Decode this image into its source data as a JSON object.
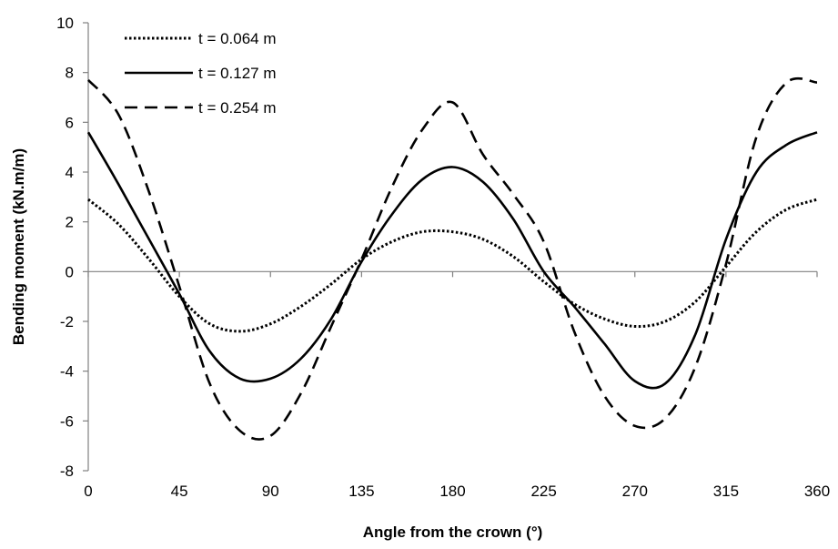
{
  "chart_data": {
    "type": "line",
    "title": "",
    "xlabel": "Angle from the crown (°)",
    "ylabel": "Bending moment (kN.m/m)",
    "xlim": [
      0,
      360
    ],
    "ylim": [
      -8,
      10
    ],
    "xticks": [
      0,
      45,
      90,
      135,
      180,
      225,
      270,
      315,
      360
    ],
    "yticks": [
      -8,
      -6,
      -4,
      -2,
      0,
      2,
      4,
      6,
      8,
      10
    ],
    "grid": false,
    "legend_position": "top-left",
    "series": [
      {
        "name": "t = 0.064 m",
        "style": "dotted",
        "color": "#000000",
        "x": [
          0,
          15,
          30,
          45,
          60,
          75,
          90,
          105,
          120,
          135,
          150,
          165,
          180,
          195,
          210,
          225,
          240,
          255,
          270,
          285,
          300,
          315,
          330,
          345,
          360
        ],
        "y": [
          2.9,
          1.9,
          0.5,
          -1.0,
          -2.1,
          -2.4,
          -2.1,
          -1.4,
          -0.5,
          0.5,
          1.2,
          1.6,
          1.6,
          1.3,
          0.6,
          -0.4,
          -1.3,
          -1.9,
          -2.2,
          -2.0,
          -1.2,
          0.2,
          1.6,
          2.5,
          2.9
        ]
      },
      {
        "name": "t = 0.127 m",
        "style": "solid",
        "color": "#000000",
        "x": [
          0,
          15,
          30,
          45,
          60,
          75,
          90,
          105,
          120,
          135,
          150,
          165,
          180,
          195,
          210,
          225,
          240,
          255,
          270,
          285,
          300,
          315,
          330,
          345,
          360
        ],
        "y": [
          5.6,
          3.5,
          1.3,
          -0.9,
          -3.2,
          -4.3,
          -4.3,
          -3.5,
          -1.9,
          0.4,
          2.3,
          3.7,
          4.2,
          3.6,
          2.1,
          0.0,
          -1.4,
          -2.9,
          -4.4,
          -4.5,
          -2.5,
          1.3,
          4.0,
          5.1,
          5.6
        ]
      },
      {
        "name": "t = 0.254 m",
        "style": "dashed",
        "color": "#000000",
        "x": [
          0,
          15,
          30,
          45,
          60,
          75,
          90,
          105,
          120,
          135,
          150,
          165,
          180,
          195,
          210,
          225,
          240,
          255,
          270,
          285,
          300,
          315,
          330,
          345,
          360
        ],
        "y": [
          7.7,
          6.3,
          3.2,
          -0.6,
          -4.5,
          -6.4,
          -6.6,
          -4.9,
          -2.2,
          0.5,
          3.4,
          5.7,
          6.8,
          4.7,
          3.1,
          1.2,
          -2.4,
          -5.0,
          -6.2,
          -5.9,
          -3.8,
          0.3,
          5.4,
          7.6,
          7.6
        ]
      }
    ]
  }
}
